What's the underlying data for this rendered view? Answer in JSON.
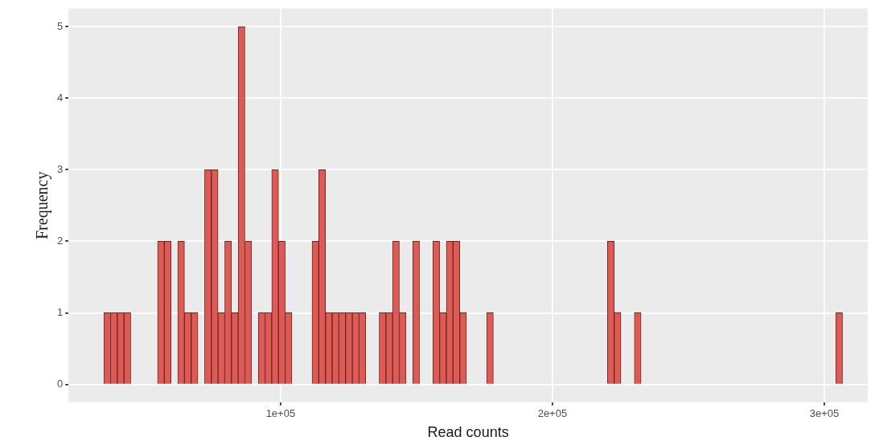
{
  "chart_data": {
    "type": "histogram",
    "xlabel": "Read counts",
    "ylabel": "Frequency",
    "color": "#e05a55",
    "bins": [
      35000,
      37470,
      39940,
      42410,
      44880,
      47350,
      49820,
      52290,
      54760,
      57230,
      59700,
      62170,
      64640,
      67110,
      69580,
      72050,
      74520,
      76990,
      79460,
      81930,
      84400,
      86870,
      89340,
      91810,
      94280,
      96750,
      99220,
      101690,
      104160,
      106630,
      109100,
      111570,
      114040,
      116510,
      118980,
      121450,
      123920,
      126390,
      128860,
      131330,
      133800,
      136270,
      138740,
      141210,
      143680,
      146150,
      148620,
      151090,
      153560,
      156030,
      158500,
      160970,
      163440,
      165910,
      168380,
      170850,
      173320,
      175790,
      178260,
      180730,
      183200,
      185670,
      188140,
      190610,
      193080,
      195550,
      198020,
      200490,
      202960,
      205430,
      207900,
      210370,
      212840,
      215310,
      217780,
      220250,
      222720,
      225190,
      227660,
      230130,
      232600,
      235070,
      237540,
      240010,
      242480,
      244950,
      247420,
      249890,
      252360,
      254830,
      257300,
      259770,
      262240,
      264710,
      267180,
      269650,
      272120,
      274590,
      277060,
      279530,
      282000,
      284470,
      286940,
      289410,
      291880,
      294350,
      296820,
      299290,
      301760,
      304230,
      306700
    ],
    "values": [
      1,
      1,
      1,
      1,
      0,
      0,
      0,
      0,
      2,
      2,
      0,
      2,
      1,
      1,
      0,
      3,
      3,
      1,
      2,
      1,
      5,
      2,
      0,
      1,
      1,
      3,
      2,
      1,
      0,
      0,
      0,
      2,
      3,
      1,
      1,
      1,
      1,
      1,
      1,
      0,
      0,
      1,
      1,
      2,
      1,
      0,
      2,
      0,
      0,
      2,
      1,
      2,
      2,
      1,
      0,
      0,
      0,
      1,
      0,
      0,
      0,
      0,
      0,
      0,
      0,
      0,
      0,
      0,
      0,
      0,
      0,
      0,
      0,
      0,
      0,
      2,
      1,
      0,
      0,
      1,
      0,
      0,
      0,
      0,
      0,
      0,
      0,
      0,
      0,
      0,
      0,
      0,
      0,
      0,
      0,
      0,
      0,
      0,
      0,
      0,
      0,
      0,
      0,
      0,
      0,
      0,
      0,
      0,
      0,
      1
    ],
    "xlim": [
      22000,
      316000
    ],
    "xticks": [
      {
        "value": 100000,
        "label": "1e+05"
      },
      {
        "value": 200000,
        "label": "2e+05"
      },
      {
        "value": 300000,
        "label": "3e+05"
      }
    ],
    "ylim": [
      -0.25,
      5.25
    ],
    "yticks": [
      0,
      1,
      2,
      3,
      4,
      5
    ],
    "grid": true
  }
}
